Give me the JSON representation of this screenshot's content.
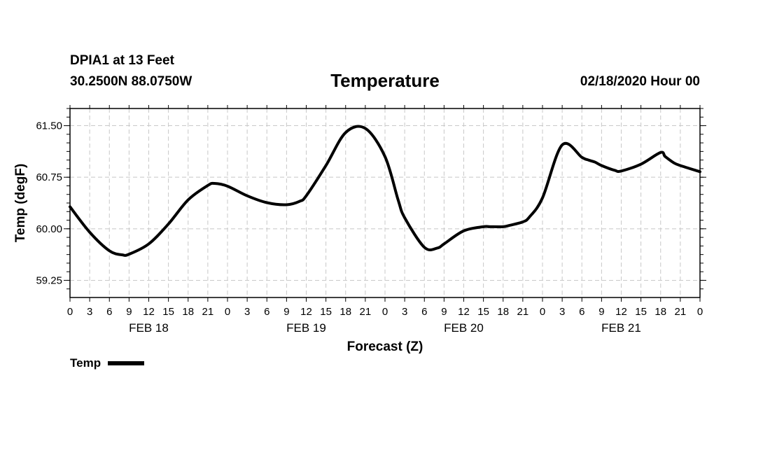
{
  "header": {
    "station": "DPIA1 at 13 Feet",
    "coords": "30.2500N 88.0750W",
    "title": "Temperature",
    "run_time": "02/18/2020 Hour 00"
  },
  "legend": {
    "label": "Temp"
  },
  "chart_data": {
    "type": "line",
    "title": "Temperature",
    "xlabel": "Forecast (Z)",
    "ylabel": "Temp (degF)",
    "x_unit": "hours from 02/18/2020 00Z",
    "xlim": [
      0,
      96
    ],
    "ylim": [
      59.0,
      61.75
    ],
    "grid": true,
    "y_ticks": [
      "59.25",
      "60.00",
      "60.75",
      "61.50"
    ],
    "x_tick_labels": [
      "0",
      "3",
      "6",
      "9",
      "12",
      "15",
      "18",
      "21",
      "0",
      "3",
      "6",
      "9",
      "12",
      "15",
      "18",
      "21",
      "0",
      "3",
      "6",
      "9",
      "12",
      "15",
      "18",
      "21",
      "0",
      "3",
      "6",
      "9",
      "12",
      "15",
      "18",
      "21",
      "0"
    ],
    "day_labels": [
      {
        "label": "FEB 18",
        "hour": 12
      },
      {
        "label": "FEB 19",
        "hour": 36
      },
      {
        "label": "FEB 20",
        "hour": 60
      },
      {
        "label": "FEB 21",
        "hour": 84
      }
    ],
    "series": [
      {
        "name": "Temp",
        "x": [
          0,
          3,
          6,
          8,
          9,
          12,
          15,
          18,
          21,
          22,
          24,
          27,
          30,
          33,
          35,
          36,
          39,
          42,
          45,
          48,
          50,
          51,
          54,
          56,
          57,
          60,
          63,
          64,
          66,
          67,
          69,
          70,
          72,
          75,
          78,
          79,
          80,
          81,
          83,
          84,
          87,
          90,
          90.7,
          92,
          93,
          96
        ],
        "y": [
          60.32,
          59.95,
          59.68,
          59.62,
          59.63,
          59.78,
          60.07,
          60.42,
          60.63,
          60.66,
          60.62,
          60.48,
          60.38,
          60.35,
          60.4,
          60.48,
          60.92,
          61.4,
          61.46,
          61.05,
          60.42,
          60.16,
          59.73,
          59.72,
          59.78,
          59.97,
          60.03,
          60.03,
          60.03,
          60.05,
          60.1,
          60.17,
          60.45,
          61.22,
          61.04,
          61.0,
          60.97,
          60.92,
          60.85,
          60.84,
          60.94,
          61.11,
          61.05,
          60.96,
          60.92,
          60.83
        ]
      }
    ]
  }
}
